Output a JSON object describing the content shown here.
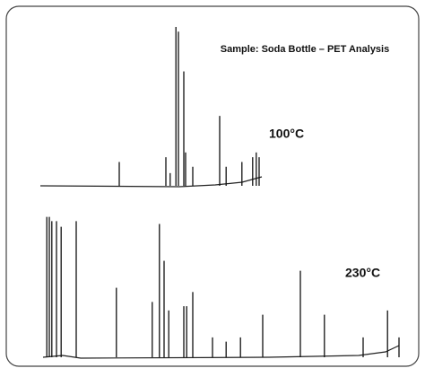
{
  "chart_data": {
    "type": "chromatogram",
    "title": "Sample: Soda Bottle – PET Analysis",
    "xlim": [
      0,
      100
    ],
    "ylim": [
      0,
      100
    ],
    "color": "#111111",
    "series": [
      {
        "name": "100°C",
        "x": [
          22,
          35,
          36.2,
          37.8,
          38.5,
          40,
          40.5,
          42.5,
          50,
          51.8,
          56.2,
          59.2,
          60.2,
          61
        ],
        "values": [
          15,
          18,
          8,
          100,
          97,
          72,
          21,
          12,
          44,
          12,
          15,
          18,
          21,
          18
        ]
      },
      {
        "name": "230°C",
        "x": [
          1.8,
          2.5,
          3.2,
          4.5,
          5.8,
          10,
          21.2,
          31.2,
          33.2,
          34.5,
          35.8,
          40,
          40.8,
          42.5,
          48,
          51.8,
          55.8,
          62,
          72.5,
          79.2,
          90,
          96.8,
          100
        ],
        "values": [
          99,
          99,
          96,
          96,
          92,
          96,
          49,
          39,
          94,
          68,
          33,
          36,
          36,
          46,
          14,
          11,
          14,
          30,
          61,
          30,
          14,
          33,
          14
        ]
      }
    ]
  }
}
